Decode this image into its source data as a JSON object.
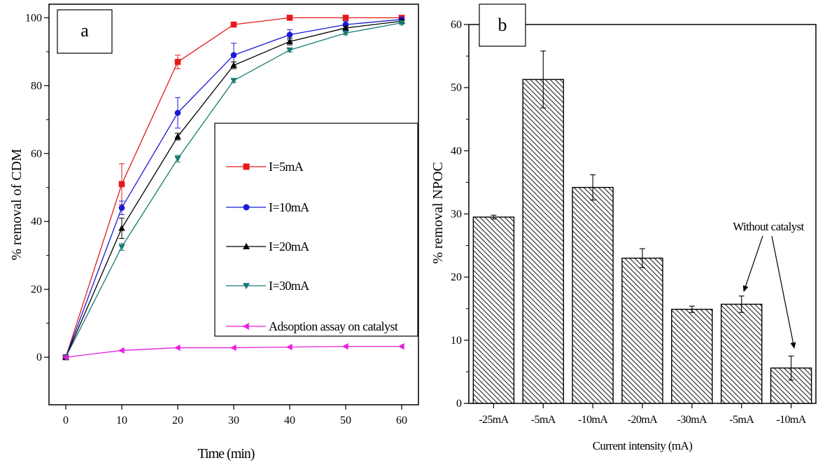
{
  "chart_data": [
    {
      "panel": "a",
      "type": "line",
      "xlabel": "Time (min)",
      "ylabel": "% removal of CDM",
      "xlim": [
        -3,
        63
      ],
      "ylim": [
        -14,
        104
      ],
      "xticks": [
        0,
        10,
        20,
        30,
        40,
        50,
        60
      ],
      "yticks": [
        0,
        20,
        40,
        60,
        80,
        100
      ],
      "grid": false,
      "legend_position": "center-right",
      "x": [
        0,
        10,
        20,
        30,
        40,
        50,
        60
      ],
      "series": [
        {
          "name": "I=5mA",
          "color": "#e41a1c",
          "marker": "square",
          "values": [
            0,
            51,
            87,
            98,
            100,
            100,
            100
          ],
          "errors": [
            0,
            6,
            2,
            0.5,
            0.5,
            0.3,
            0.3
          ]
        },
        {
          "name": "I=10mA",
          "color": "#1a1ad6",
          "marker": "circle",
          "values": [
            0,
            44,
            72,
            89,
            95,
            98,
            99.5
          ],
          "errors": [
            0,
            2,
            4.5,
            3.5,
            1.5,
            1,
            0.5
          ]
        },
        {
          "name": "I=20mA",
          "color": "#000000",
          "marker": "triangle-up",
          "values": [
            0,
            38,
            65,
            86,
            93,
            97,
            99
          ],
          "errors": [
            0,
            3,
            1,
            1,
            1,
            0.5,
            0.5
          ]
        },
        {
          "name": "I=30mA",
          "color": "#177a76",
          "marker": "triangle-down",
          "values": [
            0,
            32.5,
            58.5,
            81.5,
            90.5,
            95.5,
            98.5
          ],
          "errors": [
            0,
            1,
            1,
            0.5,
            0.5,
            0.5,
            0.5
          ]
        },
        {
          "name": "Adsoption assay on catalyst",
          "color": "#e81fe0",
          "marker": "triangle-left",
          "values": [
            0,
            2,
            2.8,
            2.8,
            3,
            3.2,
            3.2
          ],
          "errors": [
            0,
            0,
            0,
            0,
            0,
            0,
            0
          ]
        }
      ]
    },
    {
      "panel": "b",
      "type": "bar",
      "xlabel": "Current intensity (mA)",
      "ylabel": "% removal NPOC",
      "ylim": [
        0,
        60
      ],
      "yticks": [
        0,
        10,
        20,
        30,
        40,
        50,
        60
      ],
      "grid": false,
      "categories": [
        "-25mA",
        "-5mA",
        "-10mA",
        "-20mA",
        "-30mA",
        "-5mA",
        "-10mA"
      ],
      "values": [
        29.5,
        51.3,
        34.2,
        23.0,
        14.9,
        15.7,
        5.6
      ],
      "errors": [
        0.3,
        4.5,
        2.0,
        1.5,
        0.5,
        1.3,
        1.9
      ],
      "bar_fill": "hatched",
      "annotation": {
        "text": "Without catalyst",
        "targets": [
          5,
          6
        ]
      }
    }
  ]
}
